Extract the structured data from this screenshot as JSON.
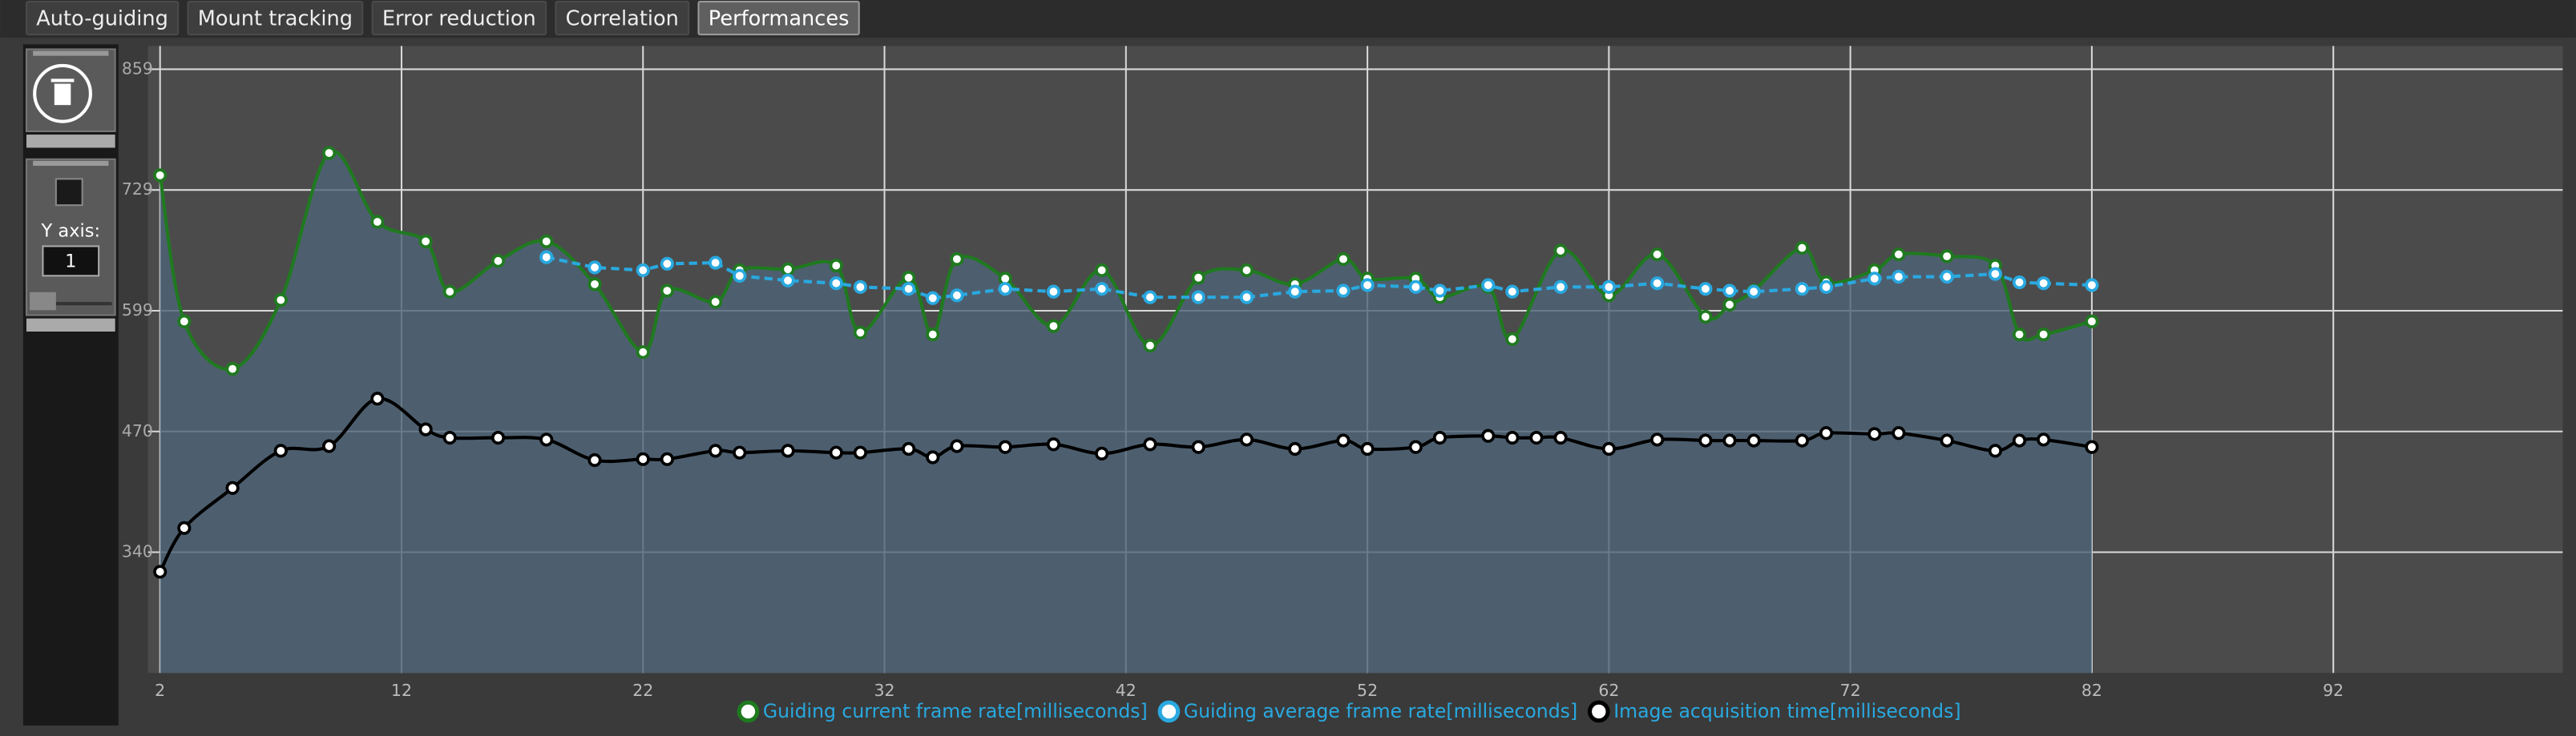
{
  "tabs": [
    "Auto-guiding",
    "Mount tracking",
    "Error reduction",
    "Correlation",
    "Performances"
  ],
  "selected_tab": 4,
  "panel": {
    "y_axis_label": "Y axis:",
    "y_axis_value": "1"
  },
  "chart_data": {
    "type": "line",
    "xlim": [
      1.5,
      101.5
    ],
    "xticks": [
      2,
      12,
      22,
      32,
      42,
      52,
      62,
      72,
      82,
      92
    ],
    "ylim": [
      210.25,
      884
    ],
    "yticks": [
      {
        "value": 340,
        "label": "340"
      },
      {
        "value": 469.75,
        "label": "470"
      },
      {
        "value": 599.5,
        "label": "599"
      },
      {
        "value": 729.25,
        "label": "729"
      },
      {
        "value": 859,
        "label": "859"
      }
    ],
    "grid": true,
    "series": [
      {
        "name": "Guiding current frame rate[milliseconds]",
        "color": "#1f7a1f",
        "area": true,
        "smooth": true,
        "x": [
          2,
          3,
          5,
          7,
          9,
          11,
          13,
          14,
          16,
          18,
          20,
          22,
          23,
          25,
          26,
          28,
          30,
          31,
          33,
          34,
          35,
          37,
          39,
          41,
          43,
          45,
          47,
          49,
          51,
          52,
          54,
          55,
          57,
          58,
          60,
          62,
          64,
          66,
          67,
          68,
          70,
          71,
          73,
          74,
          76,
          78,
          79,
          80,
          82
        ],
        "values": [
          745,
          588,
          537,
          611,
          769,
          695,
          674,
          620,
          653,
          674,
          628,
          555,
          621,
          609,
          643,
          644,
          648,
          576,
          635,
          574,
          655,
          634,
          583,
          643,
          562,
          635,
          643,
          628,
          655,
          634,
          634,
          614,
          625,
          569,
          664,
          616,
          660,
          593,
          606,
          621,
          667,
          630,
          643,
          660,
          658,
          648,
          574,
          574,
          588
        ]
      },
      {
        "name": "Guiding average frame rate[milliseconds]",
        "color": "#29a9e0",
        "dashed": true,
        "x": [
          18,
          20,
          22,
          23,
          25,
          26,
          28,
          30,
          31,
          33,
          34,
          35,
          37,
          39,
          41,
          43,
          45,
          47,
          49,
          51,
          52,
          54,
          55,
          57,
          58,
          60,
          62,
          64,
          66,
          67,
          68,
          70,
          71,
          73,
          74,
          76,
          78,
          79,
          80,
          82
        ],
        "values": [
          657,
          646,
          643,
          650,
          651,
          637,
          632,
          629,
          625,
          623,
          613,
          616,
          623,
          620,
          623,
          614,
          614,
          614,
          620,
          621,
          627,
          625,
          621,
          627,
          620,
          625,
          625,
          629,
          623,
          621,
          620,
          623,
          625,
          634,
          636,
          636,
          639,
          630,
          629,
          627
        ]
      },
      {
        "name": "Image acquisition time[milliseconds]",
        "color": "#000000",
        "smooth": true,
        "x": [
          2,
          3,
          5,
          7,
          9,
          11,
          13,
          14,
          16,
          18,
          20,
          22,
          23,
          25,
          26,
          28,
          30,
          31,
          33,
          34,
          35,
          37,
          39,
          41,
          43,
          45,
          47,
          49,
          51,
          52,
          54,
          55,
          57,
          58,
          59,
          60,
          62,
          64,
          66,
          67,
          68,
          70,
          71,
          73,
          74,
          76,
          78,
          79,
          80,
          82
        ],
        "values": [
          319,
          366,
          409,
          449,
          454,
          505,
          472,
          463,
          463,
          461,
          439,
          440,
          440,
          449,
          447,
          449,
          447,
          447,
          451,
          442,
          454,
          453,
          456,
          446,
          456,
          453,
          461,
          451,
          460,
          451,
          453,
          463,
          465,
          463,
          463,
          463,
          451,
          461,
          460,
          460,
          460,
          460,
          468,
          467,
          468,
          460,
          449,
          460,
          461,
          453
        ]
      }
    ]
  }
}
